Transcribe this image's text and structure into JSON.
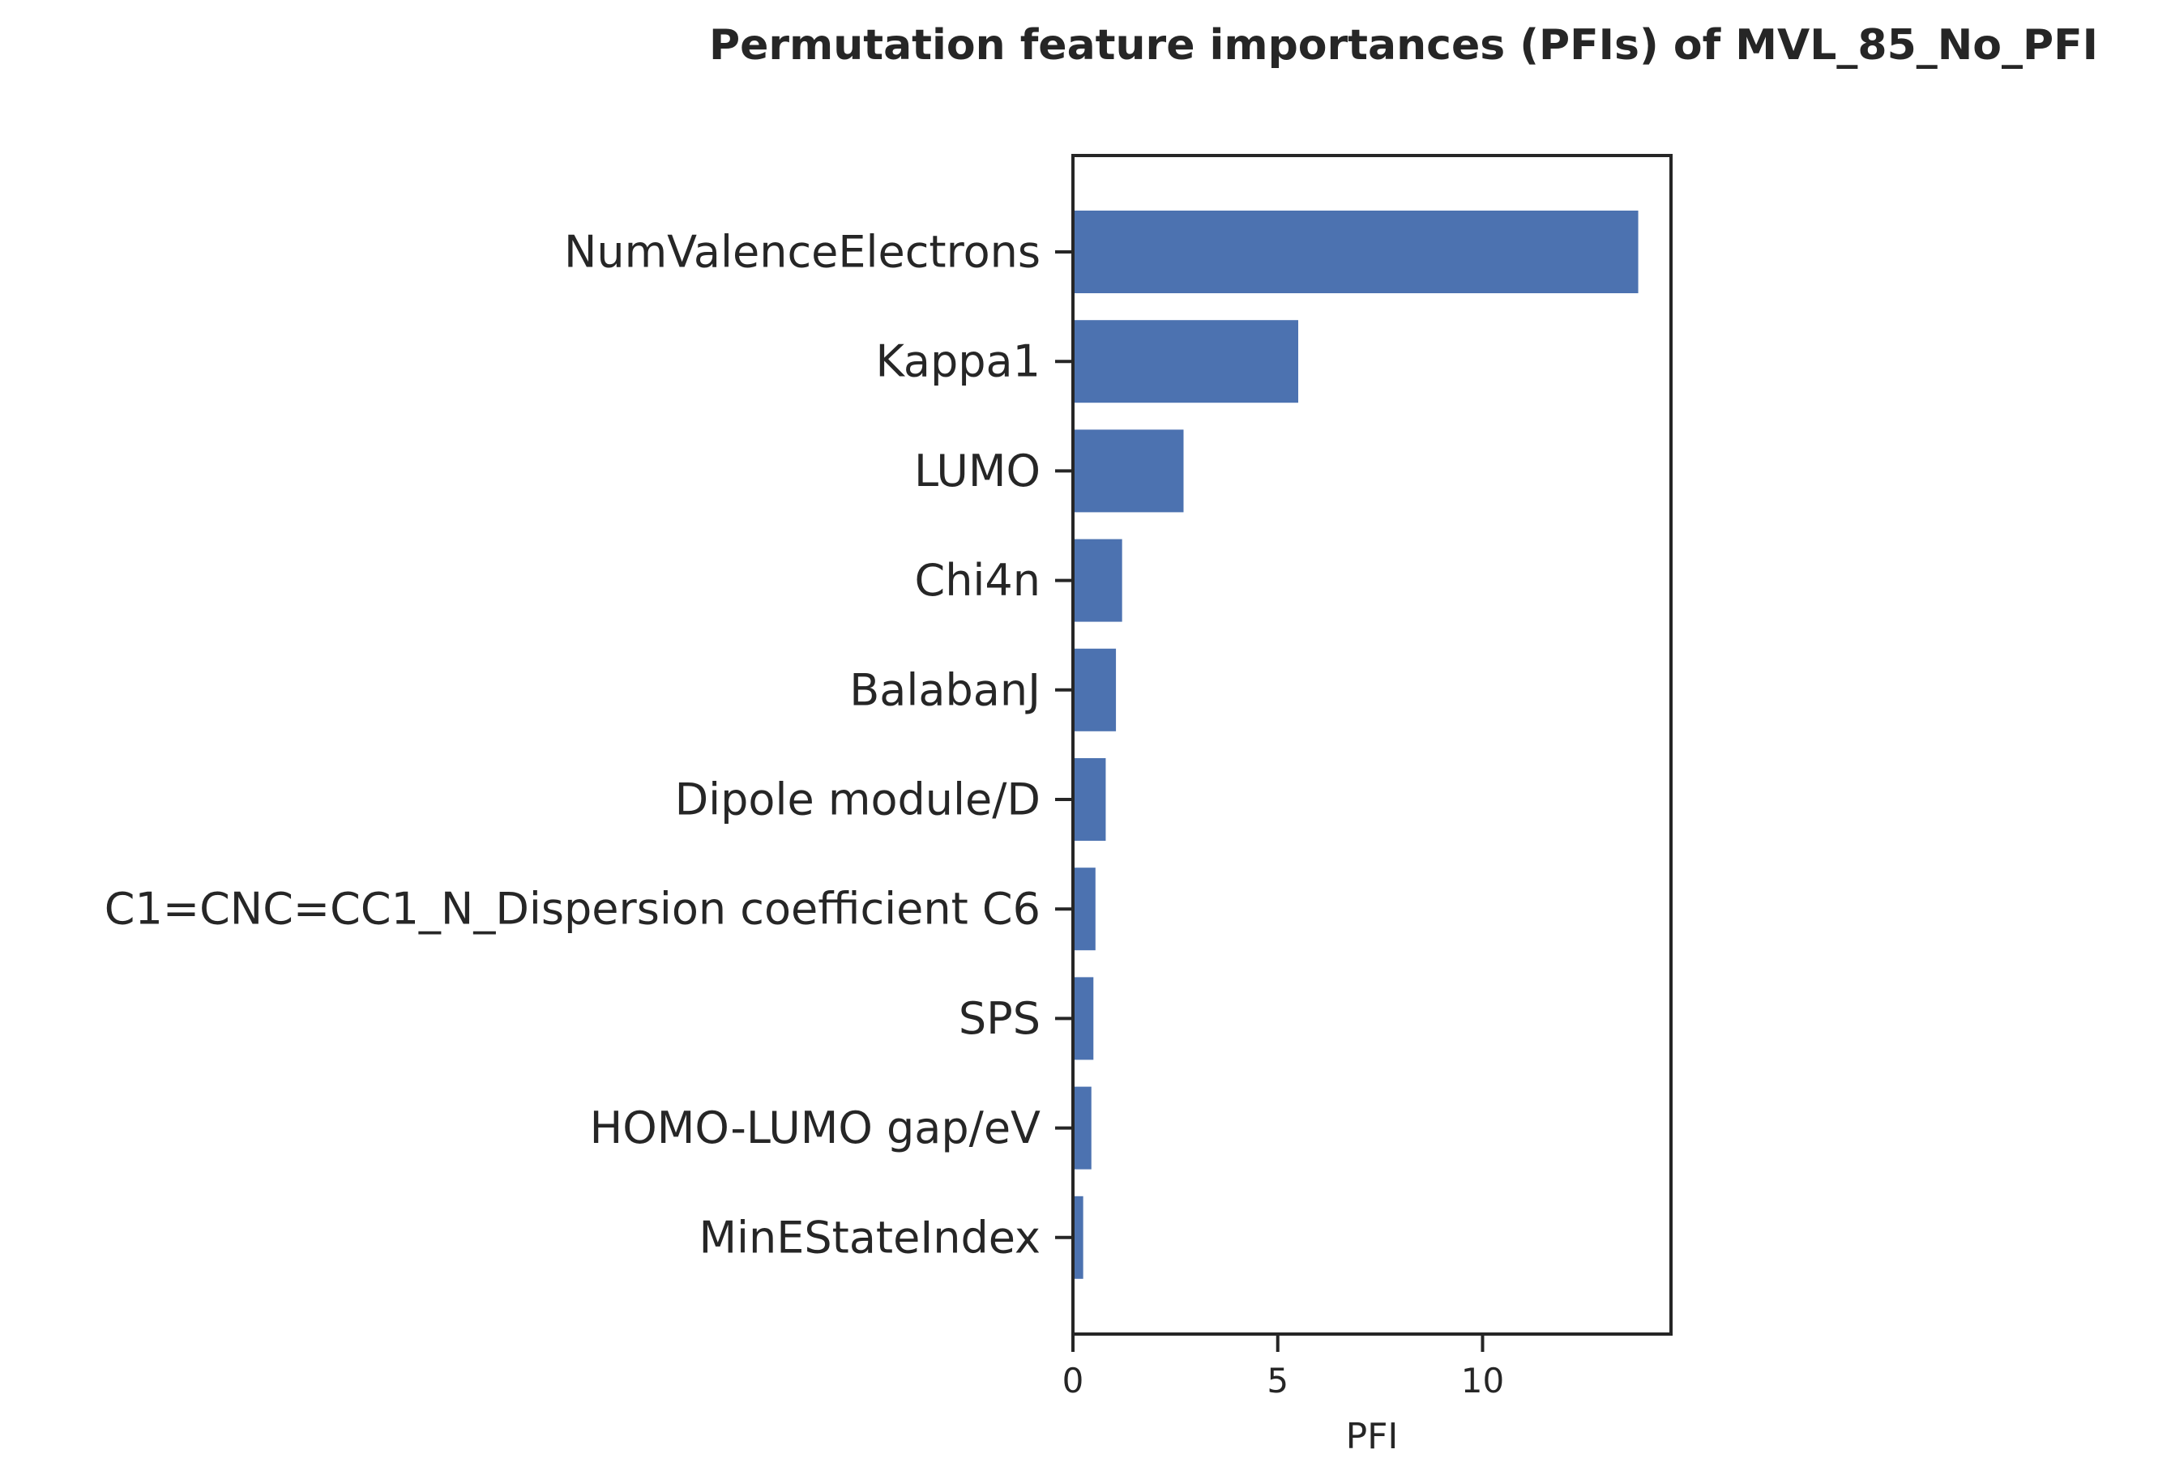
{
  "chart_data": {
    "type": "bar",
    "orientation": "horizontal",
    "title": "Permutation feature importances (PFIs) of MVL_85_No_PFI",
    "xlabel": "PFI",
    "ylabel": "",
    "categories": [
      "NumValenceElectrons",
      "Kappa1",
      "LUMO",
      "Chi4n",
      "BalabanJ",
      "Dipole module/D",
      "C1=CNC=CC1_N_Dispersion coefficient C6",
      "SPS",
      "HOMO-LUMO gap/eV",
      "MinEStateIndex"
    ],
    "values": [
      13.8,
      5.5,
      2.7,
      1.2,
      1.05,
      0.8,
      0.55,
      0.5,
      0.45,
      0.25
    ],
    "xlim": [
      0,
      14.6
    ],
    "xticks": [
      0,
      5,
      10
    ],
    "xtick_labels": [
      "0",
      "5",
      "10"
    ],
    "color": "#4c72b0",
    "grid": false
  }
}
